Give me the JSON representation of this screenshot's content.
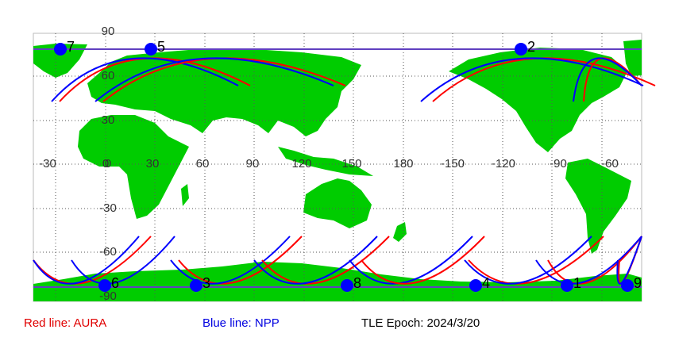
{
  "map": {
    "lon_labels": [
      -30,
      0,
      30,
      60,
      90,
      120,
      150,
      180,
      -150,
      -120,
      -90,
      -60
    ],
    "lat_labels": [
      90,
      60,
      30,
      0,
      -30,
      -60,
      -90
    ],
    "points": [
      "7",
      "5",
      "2",
      "6",
      "3",
      "8",
      "4",
      "1",
      "9"
    ]
  },
  "legend": {
    "aura": "Red line: AURA",
    "npp": "Blue line: NPP",
    "epoch": "TLE Epoch: 2024/3/20"
  }
}
